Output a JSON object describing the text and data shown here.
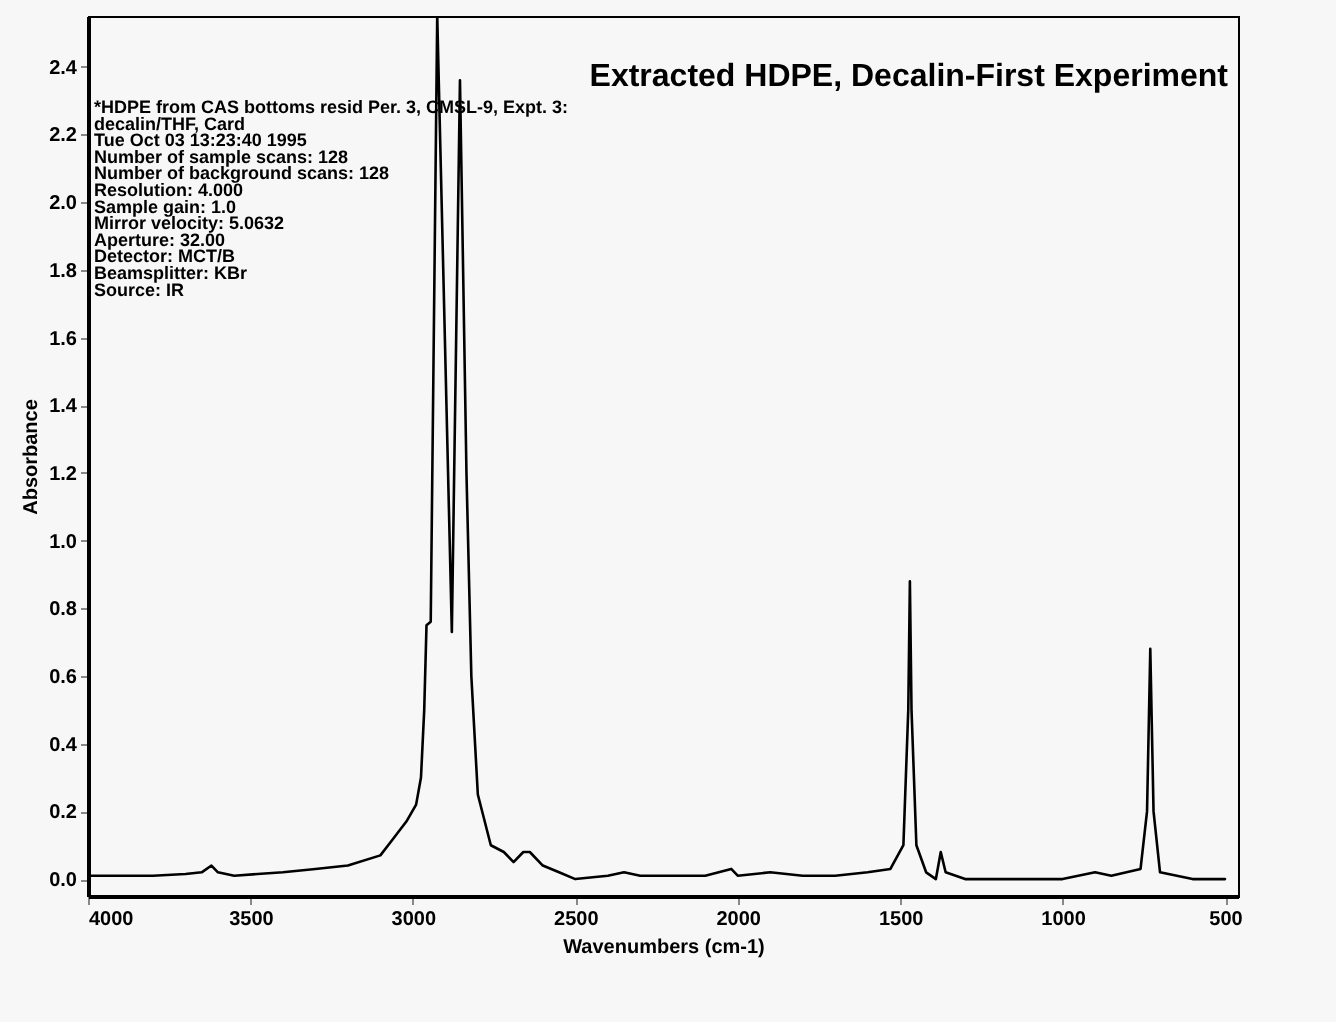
{
  "chart_data": {
    "type": "line",
    "title": "Extracted HDPE, Decalin-First Experiment",
    "xlabel": "Wavenumbers (cm-1)",
    "ylabel": "Absorbance",
    "annotations": [
      "*HDPE from CAS bottoms resid Per. 3, CMSL-9, Expt. 3:",
      " decalin/THF, Card",
      "Tue Oct 03 13:23:40 1995",
      "Number of sample scans:  128",
      "Number of background scans:  128",
      "Resolution:  4.000",
      "Sample gain:  1.0",
      "Mirror velocity:  5.0632",
      "Aperture:  32.00",
      "Detector:  MCT/B",
      "Beamsplitter:  KBr",
      "Source:  IR"
    ],
    "x": [
      4000,
      3900,
      3800,
      3700,
      3650,
      3620,
      3600,
      3550,
      3400,
      3300,
      3200,
      3100,
      3060,
      3020,
      2990,
      2975,
      2965,
      2958,
      2945,
      2925,
      2880,
      2855,
      2835,
      2820,
      2800,
      2760,
      2720,
      2690,
      2660,
      2640,
      2600,
      2550,
      2500,
      2400,
      2350,
      2300,
      2200,
      2100,
      2020,
      2000,
      1900,
      1800,
      1700,
      1600,
      1530,
      1490,
      1475,
      1470,
      1465,
      1450,
      1420,
      1390,
      1375,
      1360,
      1300,
      1200,
      1000,
      900,
      850,
      760,
      740,
      730,
      720,
      700,
      600,
      500
    ],
    "values": [
      0.01,
      0.01,
      0.01,
      0.015,
      0.02,
      0.04,
      0.02,
      0.01,
      0.02,
      0.03,
      0.04,
      0.07,
      0.12,
      0.17,
      0.22,
      0.3,
      0.5,
      0.75,
      0.76,
      2.55,
      0.73,
      2.36,
      1.2,
      0.6,
      0.25,
      0.1,
      0.08,
      0.05,
      0.08,
      0.08,
      0.04,
      0.02,
      0.0,
      0.01,
      0.02,
      0.01,
      0.01,
      0.01,
      0.03,
      0.01,
      0.02,
      0.01,
      0.01,
      0.02,
      0.03,
      0.1,
      0.5,
      0.88,
      0.5,
      0.1,
      0.02,
      0.0,
      0.08,
      0.02,
      0.0,
      0.0,
      0.0,
      0.02,
      0.01,
      0.03,
      0.2,
      0.68,
      0.2,
      0.02,
      0.0,
      0.0
    ],
    "color": "#000000",
    "xlim": [
      4000,
      460
    ],
    "ylim": [
      -0.05,
      2.55
    ],
    "xticks": [
      4000,
      3500,
      3000,
      2500,
      2000,
      1500,
      1000,
      500
    ],
    "yticks": [
      {
        "value": 0,
        "label": "0.0"
      },
      0.2,
      0.4,
      0.6,
      0.8,
      {
        "value": 1,
        "label": "1.0"
      },
      1.2,
      1.4,
      1.6,
      1.8,
      {
        "value": 2,
        "label": "2.0"
      },
      2.2,
      2.4
    ],
    "grid": false
  }
}
